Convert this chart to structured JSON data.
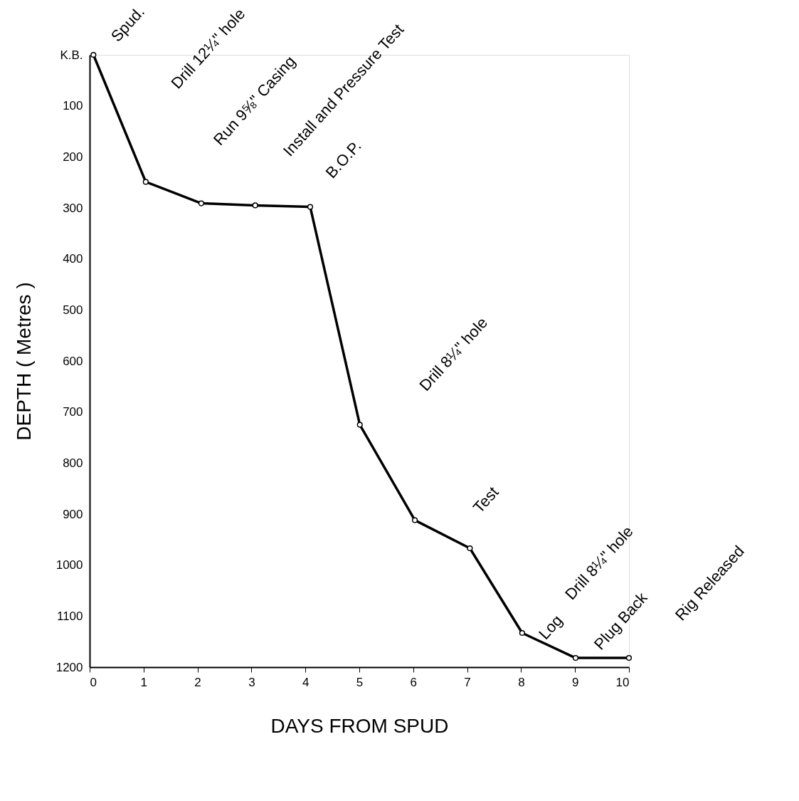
{
  "chart_data": {
    "type": "line",
    "xlabel": "DAYS   FROM   SPUD",
    "ylabel": "DEPTH   ( Metres )",
    "x": [
      0.07,
      1.04,
      2.07,
      3.07,
      4.09,
      5.01,
      6.03,
      7.05,
      8.02,
      9.01,
      10
    ],
    "series": [
      {
        "color": "#000000",
        "values": [
          0,
          249,
          291,
          295,
          298,
          725,
          912,
          967,
          1133,
          1182,
          1182
        ]
      }
    ],
    "xlim": [
      0,
      10
    ],
    "xticks": [
      0,
      1,
      2,
      3,
      4,
      5,
      6,
      7,
      8,
      9,
      10
    ],
    "ylim": [
      1200,
      0
    ],
    "yticks": [
      {
        "value": 0,
        "label": "K.B."
      },
      100,
      200,
      300,
      400,
      500,
      600,
      700,
      800,
      900,
      1000,
      1100,
      1200
    ],
    "grid": false,
    "legend": false,
    "marker": "circle",
    "line_style": "solid",
    "annotations": [
      "Spud.",
      "Drill 12¼\" hole",
      "Run 9⅝\" Casing",
      "Install and Pressure Test",
      "B.O.P.",
      "Drill 8¼\" hole",
      "Test",
      "Drill 8¼\" hole",
      "Log",
      "Plug Back",
      "Rig Released"
    ]
  }
}
